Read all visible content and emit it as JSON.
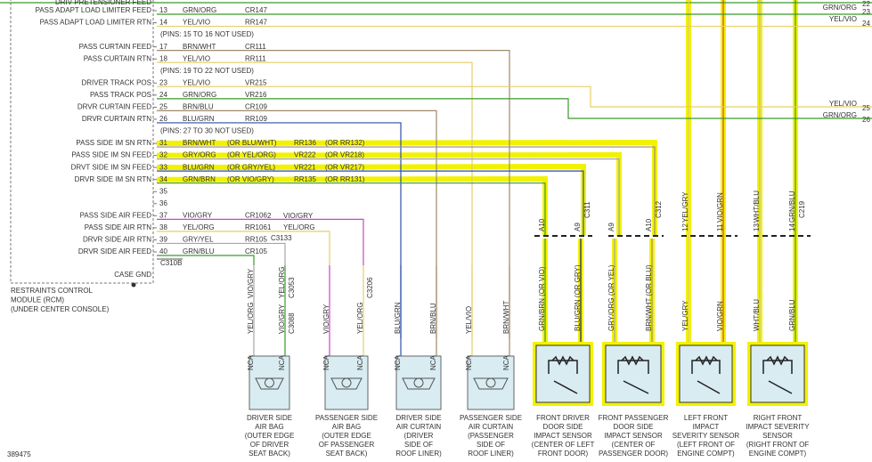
{
  "rcm": {
    "rows": [
      {
        "label": "DRIV PRETENSIONER FEED"
      },
      {
        "label": "PASS ADAPT LOAD LIMITER FEED",
        "pin": "13",
        "wire": "GRN/ORG",
        "circuit": "CR147"
      },
      {
        "label": "PASS ADAPT LOAD LIMITER RTN",
        "pin": "14",
        "wire": "YEL/VIO",
        "circuit": "RR147"
      },
      {
        "note": "(PINS: 15 TO 16 NOT USED)"
      },
      {
        "label": "PASS CURTAIN FEED",
        "pin": "17",
        "wire": "BRN/WHT",
        "circuit": "CR111"
      },
      {
        "label": "PASS CURTAIN RTN",
        "pin": "18",
        "wire": "YEL/VIO",
        "circuit": "RR111"
      },
      {
        "note": "(PINS: 19 TO 22 NOT USED)"
      },
      {
        "label": "DRIVER TRACK POS",
        "pin": "23",
        "wire": "YEL/VIO",
        "circuit": "VR215"
      },
      {
        "label": "PASS TRACK POS",
        "pin": "24",
        "wire": "GRN/ORG",
        "circuit": "VR216"
      },
      {
        "label": "DRVR CURTAIN FEED",
        "pin": "25",
        "wire": "BRN/BLU",
        "circuit": "CR109"
      },
      {
        "label": "DRVR CURTAIN RTN",
        "pin": "26",
        "wire": "BLU/GRN",
        "circuit": "RR109"
      },
      {
        "note": "(PINS: 27 TO 30 NOT USED)"
      },
      {
        "label": "PASS SIDE IM SN RTN",
        "pin": "31",
        "wire": "BRN/WHT",
        "wire_alt": "(OR BLU/WHT)",
        "circuit": "RR136",
        "circuit_alt": "(OR RR132)"
      },
      {
        "label": "PASS SIDE IM SN FEED",
        "pin": "32",
        "wire": "GRY/ORG",
        "wire_alt": "(OR YEL/ORG)",
        "circuit": "VR222",
        "circuit_alt": "(OR VR218)"
      },
      {
        "label": "DRVT SIDE IM SN FEED",
        "pin": "33",
        "wire": "BLU/GRN",
        "wire_alt": "(OR GRY/YEL)",
        "circuit": "VR221",
        "circuit_alt": "(OR VR217)"
      },
      {
        "label": "DRVR SIDE IM SN RTN",
        "pin": "34",
        "wire": "GRN/BRN",
        "wire_alt": "(OR VIO/GRY)",
        "circuit": "RR135",
        "circuit_alt": "(OR RR131)"
      },
      {
        "pin": "35"
      },
      {
        "pin": "36"
      },
      {
        "label": "PASS SIDE AIR FEED",
        "pin": "37",
        "wire": "VIO/GRY",
        "circuit": "CR106"
      },
      {
        "label": "PASS SIDE AIR RTN",
        "pin": "38",
        "wire": "YEL/ORG",
        "circuit": "RR106"
      },
      {
        "label": "DRVR SIDE AIR RTN",
        "pin": "39",
        "wire": "GRY/YEL",
        "circuit": "RR105"
      },
      {
        "label": "DRVR SIDE AIR FEED",
        "pin": "40",
        "wire": "GRN/BLU",
        "circuit": "CR105"
      }
    ],
    "connector": "C310B",
    "ground": "CASE GND",
    "title": [
      "RESTRAINTS CONTROL",
      "MODULE (RCM)",
      "(UNDER CENTER CONSOLE)"
    ]
  },
  "right_edge": [
    {
      "pin": "22"
    },
    {
      "wire": "GRN/ORG",
      "pin": "23"
    },
    {
      "wire": "YEL/VIO",
      "pin": "24"
    },
    {
      "wire": "YEL/VIO",
      "pin": "25"
    },
    {
      "wire": "GRN/ORG",
      "pin": "26"
    }
  ],
  "splice": {
    "pins": [
      "2",
      "1"
    ],
    "wires": [
      "VIO/GRY",
      "YEL/ORG"
    ],
    "connector": "C3133"
  },
  "components": [
    {
      "caption": [
        "DRIVER SIDE",
        "AIR BAG",
        "(OUTER EDGE",
        "OF DRIVER",
        "SEAT BACK)"
      ],
      "connectors": [
        "C3053",
        "C3088"
      ],
      "wires": [
        {
          "upper": "VIO/GRY",
          "lower": "YEL/ORG"
        },
        {
          "upper": "YEL/ORG",
          "lower": "VIO/GRY"
        }
      ],
      "nca": [
        "NCA",
        "NCA"
      ]
    },
    {
      "caption": [
        "PASSENGER SIDE",
        "AIR BAG",
        "(OUTER EDGE",
        "OF PASSENGER",
        "SEAT BACK)"
      ],
      "connectors": [
        "C3206"
      ],
      "wires": [
        {
          "lower": "VIO/GRY"
        },
        {
          "lower": "YEL/ORG"
        }
      ],
      "nca": [
        "NCA",
        "NCA"
      ]
    },
    {
      "caption": [
        "DRIVER SIDE",
        "AIR CURTAIN",
        "(DRIVER",
        "SIDE OF",
        "ROOF LINER)"
      ],
      "connectors": [],
      "wires": [
        {
          "lower": "BLU/GRN"
        },
        {
          "lower": "BRN/BLU"
        }
      ],
      "nca": [
        "NCA",
        "NCA"
      ]
    },
    {
      "caption": [
        "PASSENGER SIDE",
        "AIR CURTAIN",
        "(PASSENGER",
        "SIDE OF",
        "ROOF LINER)"
      ],
      "connectors": [],
      "wires": [
        {
          "lower": "YEL/VIO"
        },
        {
          "lower": "BRN/WHT"
        }
      ],
      "nca": [
        "NCA",
        "NCA"
      ]
    },
    {
      "caption": [
        "FRONT DRIVER",
        "DOOR SIDE",
        "IMPACT SENSOR",
        "(CENTER OF LEFT",
        "FRONT DOOR)"
      ],
      "connectors": [
        "C311"
      ],
      "wires": [
        {
          "upper": "A10",
          "lower": "GRN/BRN (OR VIO)"
        },
        {
          "upper": "A9",
          "lower": "BLU/GRN (OR GRY)"
        }
      ]
    },
    {
      "caption": [
        "FRONT PASSENGER",
        "DOOR SIDE",
        "IMPACT SENSOR",
        "(CENTER OF",
        "PASSENGER DOOR)"
      ],
      "connectors": [
        "C312"
      ],
      "wires": [
        {
          "upper": "A9",
          "lower": "GRY/ORG (OR YEL)"
        },
        {
          "upper": "A10",
          "lower": "BRN/WHT (OR BLU)"
        }
      ]
    },
    {
      "caption": [
        "LEFT FRONT",
        "IMPACT",
        "SEVERITY SENSOR",
        "(LEFT FRONT OF",
        "ENGINE COMPT)"
      ],
      "connectors": [],
      "wires": [
        {
          "top": "YEL/GRY",
          "upper": "12",
          "lower": "YEL/GRY"
        },
        {
          "top": "VIO/GRN",
          "upper": "11",
          "lower": "VIO/GRN"
        }
      ]
    },
    {
      "caption": [
        "RIGHT FRONT",
        "IMPACT SEVERITY",
        "SENSOR",
        "(RIGHT FRONT OF",
        "ENGINE COMPT)"
      ],
      "connectors": [
        "C219"
      ],
      "wires": [
        {
          "top": "WHT/BLU",
          "upper": "13",
          "lower": "WHT/BLU"
        },
        {
          "top": "GRN/BLU",
          "upper": "14",
          "lower": "GRN/BLU"
        }
      ]
    }
  ],
  "figure_id": "389475"
}
